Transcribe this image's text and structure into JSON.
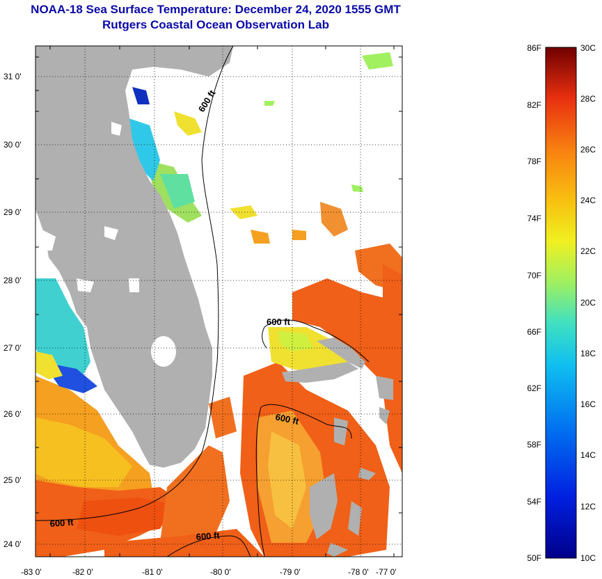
{
  "header": {
    "title_line1": "NOAA-18 Sea Surface Temperature:  December 24, 2020 1555 GMT",
    "title_line2": "Rutgers Coastal Ocean Observation Lab"
  },
  "map": {
    "lat_labels": [
      "31 0'",
      "30 0'",
      "29 0'",
      "28 0'",
      "27 0'",
      "26 0'",
      "25 0'",
      "24 0'"
    ],
    "lon_labels": [
      "-83 0'",
      "-82 0'",
      "-81 0'",
      "-80 0'",
      "-79 0'",
      "-78 0'",
      "-77 0'"
    ],
    "contour_labels": [
      "600 ft",
      "600 ft",
      "600 ft",
      "600 ft",
      "600 ft"
    ]
  },
  "colorbar": {
    "fahrenheit": [
      "86F",
      "82F",
      "78F",
      "74F",
      "70F",
      "66F",
      "62F",
      "58F",
      "54F",
      "50F"
    ],
    "celsius": [
      "30C",
      "28C",
      "26C",
      "24C",
      "22C",
      "20C",
      "18C",
      "16C",
      "14C",
      "12C",
      "10C"
    ]
  },
  "colors": {
    "title": "#0a0aa8",
    "land": "#b0b0b0",
    "warm": "#f06018",
    "mid": "#f5a020",
    "cool": "#30c8e8",
    "cold": "#1030c0"
  }
}
